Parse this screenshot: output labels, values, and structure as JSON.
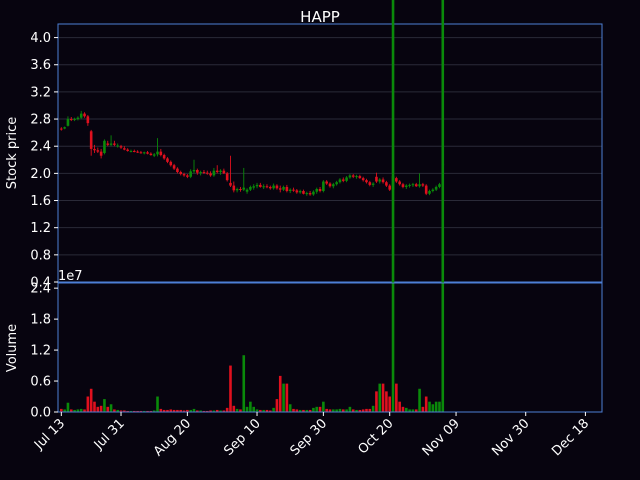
{
  "chart_data": {
    "type": "candlestick",
    "title": "HAPP",
    "price_panel": {
      "ylabel": "Stock price",
      "ylim": [
        0.4,
        4.2
      ],
      "yticks": [
        "0.4",
        "0.8",
        "1.2",
        "1.6",
        "2.0",
        "2.4",
        "2.8",
        "3.2",
        "3.6",
        "4.0"
      ],
      "grid": true
    },
    "volume_panel": {
      "ylabel": "Volume",
      "offset_label": "1e7",
      "ylim": [
        0,
        2.5
      ],
      "yticks": [
        "0.0",
        "0.6",
        "1.2",
        "1.8",
        "2.4"
      ]
    },
    "xticks": [
      {
        "label": "Jul 13",
        "day": 0
      },
      {
        "label": "Jul 31",
        "day": 18
      },
      {
        "label": "Aug 20",
        "day": 38
      },
      {
        "label": "Sep 10",
        "day": 59
      },
      {
        "label": "Sep 30",
        "day": 79
      },
      {
        "label": "Oct 20",
        "day": 99
      },
      {
        "label": "Nov 09",
        "day": 119
      },
      {
        "label": "Nov 30",
        "day": 140
      },
      {
        "label": "Dec 18",
        "day": 158
      }
    ],
    "x_range_days": [
      -1,
      163
    ],
    "colors": {
      "up": "#0a8a0a",
      "down": "#e0101e",
      "frame": "#4d7fd6",
      "grid": "#2a2a38",
      "background": "#07040f"
    },
    "candles": [
      [
        0,
        2.66,
        2.68,
        2.63,
        2.65,
        0.06
      ],
      [
        1,
        2.66,
        2.69,
        2.65,
        2.68,
        0.05
      ],
      [
        2,
        2.7,
        2.84,
        2.69,
        2.8,
        0.18
      ],
      [
        3,
        2.8,
        2.83,
        2.77,
        2.79,
        0.05
      ],
      [
        4,
        2.79,
        2.82,
        2.77,
        2.8,
        0.04
      ],
      [
        5,
        2.8,
        2.84,
        2.78,
        2.82,
        0.05
      ],
      [
        6,
        2.82,
        2.92,
        2.8,
        2.88,
        0.06
      ],
      [
        7,
        2.88,
        2.9,
        2.82,
        2.84,
        0.05
      ],
      [
        8,
        2.84,
        2.86,
        2.7,
        2.74,
        0.3
      ],
      [
        9,
        2.62,
        2.64,
        2.26,
        2.36,
        0.45
      ],
      [
        10,
        2.36,
        2.42,
        2.3,
        2.34,
        0.2
      ],
      [
        11,
        2.34,
        2.38,
        2.3,
        2.32,
        0.1
      ],
      [
        12,
        2.32,
        2.36,
        2.22,
        2.26,
        0.12
      ],
      [
        13,
        2.3,
        2.5,
        2.28,
        2.48,
        0.25
      ],
      [
        14,
        2.44,
        2.48,
        2.4,
        2.42,
        0.1
      ],
      [
        15,
        2.42,
        2.56,
        2.4,
        2.44,
        0.15
      ],
      [
        16,
        2.44,
        2.48,
        2.4,
        2.42,
        0.05
      ],
      [
        17,
        2.4,
        2.44,
        2.38,
        2.41,
        0.04
      ],
      [
        18,
        2.4,
        2.42,
        2.36,
        2.38,
        0.03
      ],
      [
        19,
        2.37,
        2.4,
        2.34,
        2.35,
        0.03
      ],
      [
        20,
        2.35,
        2.37,
        2.32,
        2.33,
        0.02
      ],
      [
        21,
        2.33,
        2.35,
        2.31,
        2.33,
        0.02
      ],
      [
        22,
        2.33,
        2.35,
        2.31,
        2.32,
        0.02
      ],
      [
        23,
        2.32,
        2.34,
        2.3,
        2.31,
        0.02
      ],
      [
        24,
        2.31,
        2.33,
        2.29,
        2.3,
        0.02
      ],
      [
        25,
        2.3,
        2.32,
        2.28,
        2.31,
        0.02
      ],
      [
        26,
        2.31,
        2.33,
        2.28,
        2.29,
        0.02
      ],
      [
        27,
        2.29,
        2.31,
        2.26,
        2.27,
        0.02
      ],
      [
        28,
        2.26,
        2.3,
        2.24,
        2.28,
        0.03
      ],
      [
        29,
        2.28,
        2.52,
        2.25,
        2.32,
        0.3
      ],
      [
        30,
        2.32,
        2.36,
        2.25,
        2.27,
        0.06
      ],
      [
        31,
        2.27,
        2.29,
        2.2,
        2.22,
        0.04
      ],
      [
        32,
        2.22,
        2.24,
        2.15,
        2.17,
        0.04
      ],
      [
        33,
        2.17,
        2.19,
        2.1,
        2.12,
        0.05
      ],
      [
        34,
        2.12,
        2.14,
        2.05,
        2.07,
        0.04
      ],
      [
        35,
        2.07,
        2.09,
        2.0,
        2.02,
        0.04
      ],
      [
        36,
        2.02,
        2.04,
        1.97,
        1.99,
        0.04
      ],
      [
        37,
        1.99,
        2.01,
        1.95,
        1.97,
        0.03
      ],
      [
        38,
        1.97,
        1.99,
        1.93,
        1.95,
        0.04
      ],
      [
        39,
        1.95,
        2.06,
        1.93,
        2.03,
        0.04
      ],
      [
        40,
        2.03,
        2.2,
        2.0,
        2.05,
        0.06
      ],
      [
        41,
        2.05,
        2.07,
        1.98,
        2.01,
        0.03
      ],
      [
        42,
        2.01,
        2.04,
        1.97,
        2.02,
        0.03
      ],
      [
        43,
        2.02,
        2.05,
        1.99,
        2.01,
        0.02
      ],
      [
        44,
        2.01,
        2.04,
        1.98,
        2.0,
        0.02
      ],
      [
        45,
        2.0,
        2.03,
        1.95,
        1.97,
        0.03
      ],
      [
        46,
        1.97,
        2.08,
        1.95,
        2.04,
        0.03
      ],
      [
        47,
        2.04,
        2.12,
        2.0,
        2.02,
        0.04
      ],
      [
        48,
        2.02,
        2.06,
        1.98,
        2.04,
        0.03
      ],
      [
        49,
        2.04,
        2.07,
        1.99,
        2.0,
        0.03
      ],
      [
        50,
        2.0,
        2.02,
        1.88,
        1.9,
        0.08
      ],
      [
        51,
        1.86,
        2.26,
        1.8,
        1.82,
        0.9
      ],
      [
        52,
        1.82,
        1.88,
        1.72,
        1.75,
        0.12
      ],
      [
        53,
        1.75,
        1.79,
        1.72,
        1.77,
        0.06
      ],
      [
        54,
        1.77,
        1.8,
        1.73,
        1.76,
        0.05
      ],
      [
        55,
        1.76,
        2.08,
        1.74,
        1.79,
        1.1
      ],
      [
        56,
        1.73,
        1.78,
        1.7,
        1.76,
        0.1
      ],
      [
        57,
        1.76,
        1.82,
        1.74,
        1.8,
        0.2
      ],
      [
        58,
        1.79,
        1.84,
        1.76,
        1.81,
        0.1
      ],
      [
        59,
        1.81,
        1.86,
        1.78,
        1.83,
        0.05
      ],
      [
        60,
        1.83,
        1.86,
        1.79,
        1.8,
        0.04
      ],
      [
        61,
        1.8,
        1.84,
        1.77,
        1.81,
        0.04
      ],
      [
        62,
        1.81,
        1.84,
        1.78,
        1.8,
        0.04
      ],
      [
        63,
        1.8,
        1.82,
        1.76,
        1.78,
        0.03
      ],
      [
        64,
        1.78,
        1.85,
        1.76,
        1.82,
        0.08
      ],
      [
        65,
        1.82,
        1.84,
        1.76,
        1.78,
        0.25
      ],
      [
        66,
        1.78,
        1.82,
        1.72,
        1.76,
        0.7
      ],
      [
        67,
        1.76,
        1.82,
        1.74,
        1.8,
        0.55
      ],
      [
        68,
        1.8,
        1.83,
        1.72,
        1.74,
        0.55
      ],
      [
        69,
        1.74,
        1.78,
        1.71,
        1.76,
        0.15
      ],
      [
        70,
        1.76,
        1.79,
        1.73,
        1.75,
        0.06
      ],
      [
        71,
        1.75,
        1.77,
        1.7,
        1.72,
        0.05
      ],
      [
        72,
        1.72,
        1.76,
        1.7,
        1.74,
        0.04
      ],
      [
        73,
        1.74,
        1.76,
        1.69,
        1.7,
        0.04
      ],
      [
        74,
        1.7,
        1.73,
        1.67,
        1.71,
        0.04
      ],
      [
        75,
        1.71,
        1.74,
        1.67,
        1.69,
        0.04
      ],
      [
        76,
        1.69,
        1.75,
        1.67,
        1.73,
        0.08
      ],
      [
        77,
        1.73,
        1.79,
        1.7,
        1.77,
        0.1
      ],
      [
        78,
        1.77,
        1.8,
        1.72,
        1.74,
        0.1
      ],
      [
        79,
        1.74,
        1.9,
        1.72,
        1.88,
        0.2
      ],
      [
        80,
        1.88,
        1.9,
        1.83,
        1.85,
        0.06
      ],
      [
        81,
        1.85,
        1.87,
        1.79,
        1.81,
        0.05
      ],
      [
        82,
        1.81,
        1.86,
        1.78,
        1.84,
        0.05
      ],
      [
        83,
        1.84,
        1.89,
        1.82,
        1.87,
        0.05
      ],
      [
        84,
        1.87,
        1.93,
        1.85,
        1.91,
        0.06
      ],
      [
        85,
        1.91,
        1.94,
        1.87,
        1.89,
        0.05
      ],
      [
        86,
        1.89,
        1.96,
        1.87,
        1.94,
        0.05
      ],
      [
        87,
        1.94,
        1.99,
        1.92,
        1.97,
        0.1
      ],
      [
        88,
        1.97,
        1.99,
        1.93,
        1.95,
        0.05
      ],
      [
        89,
        1.95,
        1.98,
        1.92,
        1.96,
        0.04
      ],
      [
        90,
        1.96,
        1.98,
        1.92,
        1.93,
        0.04
      ],
      [
        91,
        1.93,
        1.95,
        1.88,
        1.9,
        0.05
      ],
      [
        92,
        1.9,
        1.92,
        1.85,
        1.87,
        0.06
      ],
      [
        93,
        1.87,
        1.89,
        1.81,
        1.83,
        0.06
      ],
      [
        94,
        1.83,
        1.87,
        1.8,
        1.85,
        0.12
      ],
      [
        95,
        1.95,
        2.01,
        1.86,
        1.88,
        0.4
      ],
      [
        96,
        1.88,
        1.93,
        1.85,
        1.91,
        0.55
      ],
      [
        97,
        1.91,
        1.94,
        1.85,
        1.87,
        0.55
      ],
      [
        98,
        1.87,
        1.89,
        1.8,
        1.82,
        0.4
      ],
      [
        99,
        1.82,
        1.84,
        1.74,
        1.76,
        0.3
      ],
      [
        100,
        1.76,
        2.3,
        1.74,
        1.96,
        9.3
      ],
      [
        101,
        1.93,
        1.95,
        1.86,
        1.88,
        0.55
      ],
      [
        102,
        1.88,
        1.9,
        1.82,
        1.84,
        0.2
      ],
      [
        103,
        1.84,
        1.86,
        1.78,
        1.8,
        0.1
      ],
      [
        104,
        1.8,
        1.84,
        1.77,
        1.82,
        0.08
      ],
      [
        105,
        1.82,
        1.85,
        1.79,
        1.83,
        0.05
      ],
      [
        106,
        1.83,
        1.86,
        1.8,
        1.84,
        0.05
      ],
      [
        107,
        1.84,
        1.86,
        1.8,
        1.81,
        0.05
      ],
      [
        108,
        1.81,
        2.0,
        1.79,
        1.84,
        0.45
      ],
      [
        109,
        1.84,
        1.86,
        1.8,
        1.82,
        0.1
      ],
      [
        110,
        1.82,
        1.84,
        1.68,
        1.7,
        0.3
      ],
      [
        111,
        1.7,
        1.76,
        1.68,
        1.74,
        0.2
      ],
      [
        112,
        1.74,
        1.78,
        1.72,
        1.76,
        0.15
      ],
      [
        113,
        1.76,
        1.82,
        1.74,
        1.8,
        0.2
      ],
      [
        114,
        1.8,
        1.86,
        1.78,
        1.84,
        0.2
      ],
      [
        115,
        2.12,
        2.56,
        1.96,
        2.14,
        24.5
      ]
    ]
  }
}
